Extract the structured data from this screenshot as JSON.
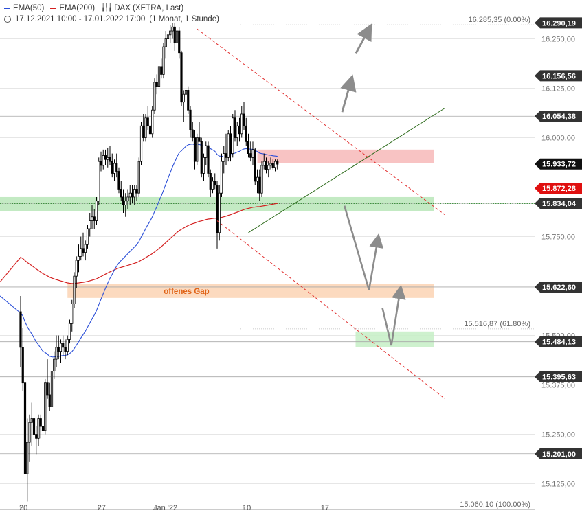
{
  "legend": {
    "ema50_label": "EMA(50)",
    "ema200_label": "EMA(200)",
    "instrument_label": "DAX (XETRA, Last)",
    "period_label": "17.12.2021 10:00 - 17.01.2022 17:00",
    "period_detail": "(1 Monat, 1 Stunde)"
  },
  "colors": {
    "ema50": "#2b4fd8",
    "ema200": "#d42020",
    "candle": "#000000",
    "resistance_zone": "#f7b9b9",
    "support_zone": "#b9e6b9",
    "gap_zone": "#fbd3b4",
    "target_zone": "#c6efc6",
    "trend_channel": "#e23030",
    "uptrend": "#2e6b1c",
    "arrow": "#8c8c8c",
    "badge": "#333333",
    "badge_current": "#111111",
    "badge_ema200": "#e01010"
  },
  "chart_data": {
    "type": "candlestick",
    "instrument": "DAX (XETRA, Last)",
    "ylim": [
      15060,
      16310
    ],
    "y_ticks": [
      16250,
      16125,
      16000,
      15750,
      15500,
      15375,
      15250,
      15125
    ],
    "y_tick_labels": [
      "16.250,00",
      "16.125,00",
      "16.000,00",
      "15.750,00",
      "15.500,00",
      "15.375,00",
      "15.250,00",
      "15.125,00"
    ],
    "x_tick_labels": [
      "20",
      "27",
      "Jan '22",
      "10",
      "17"
    ],
    "x_tick_positions": [
      0,
      35,
      60,
      100,
      135
    ],
    "price_levels": [
      {
        "value": 16290.19,
        "label": "16.290,19"
      },
      {
        "value": 16156.56,
        "label": "16.156,56"
      },
      {
        "value": 16054.38,
        "label": "16.054,38"
      },
      {
        "value": 15834.04,
        "label": "15.834,04"
      },
      {
        "value": 15622.6,
        "label": "15.622,60"
      },
      {
        "value": 15484.13,
        "label": "15.484,13"
      },
      {
        "value": 15395.63,
        "label": "15.395,63"
      },
      {
        "value": 15201.0,
        "label": "15.201,00"
      }
    ],
    "current_price": {
      "value": 15933.72,
      "label": "15.933,72"
    },
    "ema200_badge": {
      "value": 15872.28,
      "label": "15.872,28"
    },
    "fib_levels": [
      {
        "value": 16285.35,
        "label": "16.285,35 (0.00%)"
      },
      {
        "value": 15516.87,
        "label": "15.516,87 (61.80%)"
      },
      {
        "value": 15060.1,
        "label": "15.060,10 (100.00%)"
      }
    ],
    "zones": [
      {
        "name": "resistance",
        "from_index": 106,
        "to_index": 185,
        "low": 15935,
        "high": 15970
      },
      {
        "name": "support",
        "from_index": -10,
        "to_index": 185,
        "low": 15815,
        "high": 15850
      },
      {
        "name": "gap",
        "from_index": 21,
        "to_index": 185,
        "low": 15595,
        "high": 15630,
        "label": "offenes Gap"
      },
      {
        "name": "target",
        "from_index": 150,
        "to_index": 185,
        "low": 15470,
        "high": 15510
      }
    ],
    "trendlines": [
      {
        "name": "channel-upper",
        "x1": 79,
        "y1": 16275,
        "x2": 190,
        "y2": 15805,
        "style": "dashed"
      },
      {
        "name": "channel-lower",
        "x1": 88,
        "y1": 15790,
        "x2": 190,
        "y2": 15340,
        "style": "dashed"
      },
      {
        "name": "uptrend",
        "x1": 102,
        "y1": 15760,
        "x2": 190,
        "y2": 16075,
        "style": "solid"
      }
    ],
    "scenario_arrows": [
      {
        "name": "bull",
        "points": [
          [
            144,
            16065
          ],
          [
            148,
            16145
          ],
          [
            152,
            16245
          ],
          [
            156,
            16275
          ]
        ]
      },
      {
        "name": "bear",
        "points": [
          [
            145,
            15828
          ],
          [
            156,
            15615
          ],
          [
            160,
            15745
          ],
          [
            162,
            15570
          ],
          [
            166,
            15475
          ],
          [
            170,
            15615
          ]
        ]
      }
    ],
    "candles": [
      [
        15560,
        15600,
        15420,
        15470
      ],
      [
        15470,
        15520,
        15360,
        15380
      ],
      [
        15380,
        15420,
        15110,
        15150
      ],
      [
        15150,
        15290,
        15080,
        15230
      ],
      [
        15230,
        15300,
        15180,
        15280
      ],
      [
        15280,
        15330,
        15220,
        15290
      ],
      [
        15290,
        15310,
        15230,
        15250
      ],
      [
        15250,
        15270,
        15200,
        15240
      ],
      [
        15240,
        15300,
        15220,
        15290
      ],
      [
        15290,
        15300,
        15240,
        15270
      ],
      [
        15270,
        15290,
        15240,
        15260
      ],
      [
        15260,
        15390,
        15250,
        15380
      ],
      [
        15380,
        15440,
        15340,
        15350
      ],
      [
        15350,
        15380,
        15310,
        15320
      ],
      [
        15320,
        15420,
        15300,
        15410
      ],
      [
        15410,
        15460,
        15390,
        15440
      ],
      [
        15440,
        15500,
        15420,
        15470
      ],
      [
        15470,
        15500,
        15440,
        15460
      ],
      [
        15460,
        15490,
        15430,
        15480
      ],
      [
        15480,
        15500,
        15450,
        15470
      ],
      [
        15470,
        15490,
        15440,
        15460
      ],
      [
        15460,
        15500,
        15450,
        15490
      ],
      [
        15490,
        15540,
        15480,
        15530
      ],
      [
        15530,
        15590,
        15510,
        15580
      ],
      [
        15580,
        15660,
        15570,
        15650
      ],
      [
        15650,
        15700,
        15620,
        15690
      ],
      [
        15690,
        15730,
        15660,
        15700
      ],
      [
        15700,
        15750,
        15690,
        15720
      ],
      [
        15720,
        15760,
        15700,
        15710
      ],
      [
        15710,
        15740,
        15690,
        15730
      ],
      [
        15730,
        15780,
        15720,
        15770
      ],
      [
        15770,
        15810,
        15750,
        15790
      ],
      [
        15790,
        15830,
        15770,
        15800
      ],
      [
        15800,
        15820,
        15770,
        15790
      ],
      [
        15790,
        15850,
        15780,
        15840
      ],
      [
        15840,
        15950,
        15830,
        15940
      ],
      [
        15940,
        15965,
        15915,
        15930
      ],
      [
        15930,
        15970,
        15920,
        15955
      ],
      [
        15955,
        15970,
        15930,
        15945
      ],
      [
        15945,
        15975,
        15925,
        15950
      ],
      [
        15950,
        15980,
        15930,
        15940
      ],
      [
        15940,
        15960,
        15900,
        15910
      ],
      [
        15910,
        15945,
        15890,
        15935
      ],
      [
        15935,
        15960,
        15900,
        15915
      ],
      [
        15915,
        15925,
        15860,
        15870
      ],
      [
        15870,
        15890,
        15840,
        15850
      ],
      [
        15850,
        15870,
        15810,
        15830
      ],
      [
        15830,
        15860,
        15800,
        15840
      ],
      [
        15840,
        15870,
        15820,
        15850
      ],
      [
        15850,
        15880,
        15830,
        15860
      ],
      [
        15860,
        15880,
        15835,
        15850
      ],
      [
        15850,
        15880,
        15830,
        15870
      ],
      [
        15870,
        15880,
        15840,
        15860
      ],
      [
        15860,
        15950,
        15850,
        15940
      ],
      [
        15940,
        16040,
        15930,
        16030
      ],
      [
        16030,
        16060,
        15990,
        16000
      ],
      [
        16000,
        16060,
        15990,
        16050
      ],
      [
        16050,
        16080,
        16020,
        16030
      ],
      [
        16030,
        16060,
        16000,
        16010
      ],
      [
        16010,
        16080,
        16000,
        16070
      ],
      [
        16070,
        16150,
        16060,
        16140
      ],
      [
        16140,
        16160,
        16110,
        16130
      ],
      [
        16130,
        16190,
        16110,
        16180
      ],
      [
        16180,
        16200,
        16150,
        16160
      ],
      [
        16160,
        16240,
        16150,
        16230
      ],
      [
        16230,
        16270,
        16200,
        16250
      ],
      [
        16250,
        16290,
        16230,
        16260
      ],
      [
        16260,
        16285,
        16240,
        16270
      ],
      [
        16270,
        16290,
        16250,
        16280
      ],
      [
        16280,
        16290,
        16220,
        16240
      ],
      [
        16240,
        16280,
        16230,
        16270
      ],
      [
        16270,
        16280,
        16200,
        16215
      ],
      [
        16215,
        16220,
        16080,
        16090
      ],
      [
        16090,
        16120,
        16040,
        16110
      ],
      [
        16110,
        16150,
        16090,
        16120
      ],
      [
        16120,
        16130,
        16060,
        16070
      ],
      [
        16070,
        16080,
        16000,
        16020
      ],
      [
        16020,
        16040,
        15990,
        16000
      ],
      [
        16000,
        16020,
        15920,
        15940
      ],
      [
        15940,
        16010,
        15930,
        16000
      ],
      [
        16000,
        16040,
        15990,
        15990
      ],
      [
        15990,
        16000,
        15900,
        15910
      ],
      [
        15910,
        15960,
        15890,
        15950
      ],
      [
        15950,
        15990,
        15930,
        15980
      ],
      [
        15980,
        15990,
        15900,
        15910
      ],
      [
        15910,
        15920,
        15850,
        15870
      ],
      [
        15870,
        15900,
        15860,
        15890
      ],
      [
        15890,
        15910,
        15870,
        15880
      ],
      [
        15880,
        15890,
        15720,
        15760
      ],
      [
        15760,
        15880,
        15740,
        15860
      ],
      [
        15860,
        15960,
        15850,
        15940
      ],
      [
        15940,
        15980,
        15910,
        15960
      ],
      [
        15960,
        16010,
        15930,
        15950
      ],
      [
        15950,
        16020,
        15940,
        16010
      ],
      [
        16010,
        16030,
        15940,
        15960
      ],
      [
        15960,
        16060,
        15950,
        16050
      ],
      [
        16050,
        16070,
        15990,
        16000
      ],
      [
        16000,
        16040,
        15980,
        16030
      ],
      [
        16030,
        16050,
        15990,
        16010
      ],
      [
        16010,
        16080,
        16000,
        16060
      ],
      [
        16060,
        16090,
        16020,
        16030
      ],
      [
        16030,
        16050,
        15980,
        15990
      ],
      [
        15990,
        16010,
        15950,
        15960
      ],
      [
        15960,
        15990,
        15940,
        15950
      ],
      [
        15950,
        15990,
        15930,
        15970
      ],
      [
        15970,
        15975,
        15880,
        15890
      ],
      [
        15890,
        15920,
        15860,
        15900
      ],
      [
        15900,
        15920,
        15840,
        15860
      ],
      [
        15860,
        15940,
        15850,
        15930
      ],
      [
        15930,
        15960,
        15920,
        15940
      ],
      [
        15940,
        15950,
        15910,
        15920
      ],
      [
        15920,
        15940,
        15900,
        15930
      ],
      [
        15930,
        15950,
        15920,
        15935
      ],
      [
        15935,
        15945,
        15920,
        15925
      ],
      [
        15925,
        15945,
        15915,
        15940
      ],
      [
        15940,
        15945,
        15920,
        15933
      ]
    ]
  }
}
